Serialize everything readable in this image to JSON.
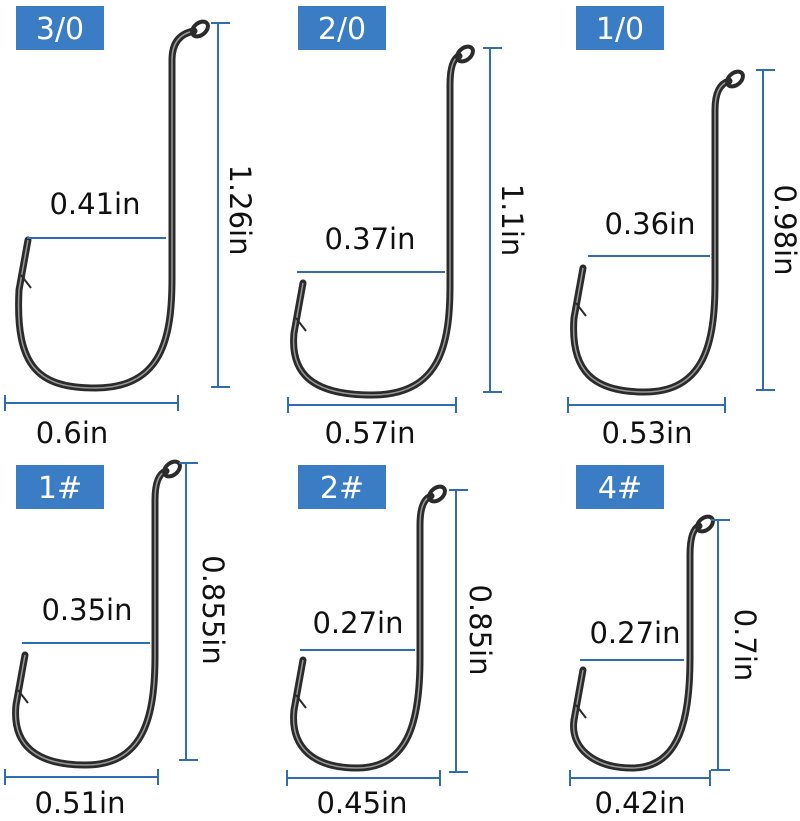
{
  "colors": {
    "label_box": "#3b7dc4",
    "dimension_line": "#2f6db3",
    "hook": "#2b2b2b"
  },
  "hooks": [
    {
      "size": "3/0",
      "length": "1.26in",
      "gap": "0.41in",
      "width": "0.6in"
    },
    {
      "size": "2/0",
      "length": "1.1in",
      "gap": "0.37in",
      "width": "0.57in"
    },
    {
      "size": "1/0",
      "length": "0.98in",
      "gap": "0.36in",
      "width": "0.53in"
    },
    {
      "size": "1#",
      "length": "0.855in",
      "gap": "0.35in",
      "width": "0.51in"
    },
    {
      "size": "2#",
      "length": "0.85in",
      "gap": "0.27in",
      "width": "0.45in"
    },
    {
      "size": "4#",
      "length": "0.7in",
      "gap": "0.27in",
      "width": "0.42in"
    }
  ]
}
